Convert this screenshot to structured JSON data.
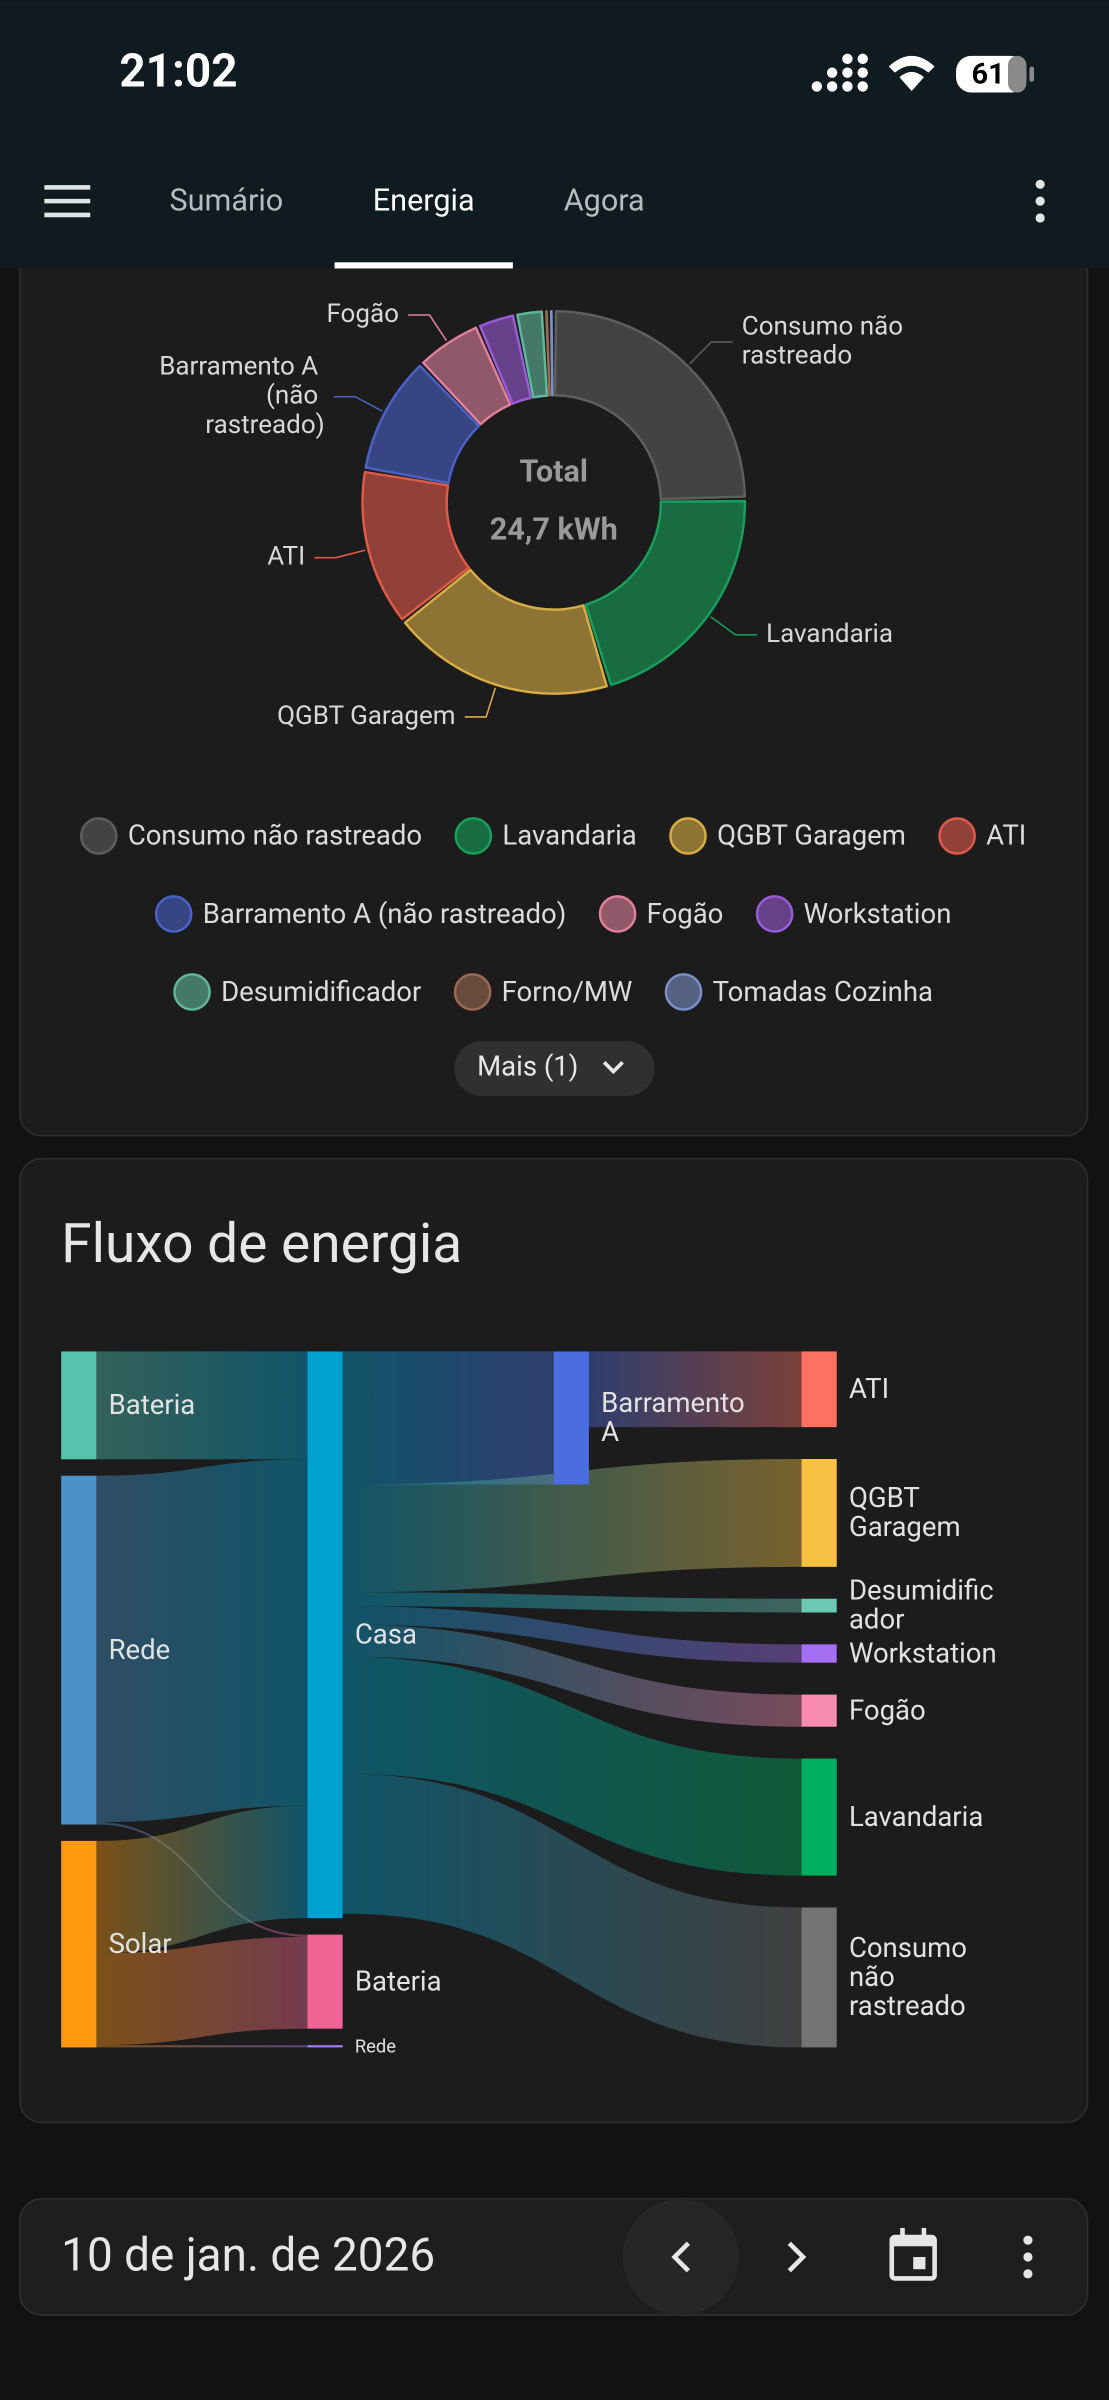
{
  "status_bar": {
    "time": "21:02",
    "battery": "61"
  },
  "tabs": [
    "Sumário",
    "Energia",
    "Agora"
  ],
  "active_tab": 1,
  "chart_data": [
    {
      "type": "donut",
      "center_title": "Total",
      "center_value": "24,7 kWh",
      "unit": "kWh",
      "categories": [
        "Consumo não rastreado",
        "Lavandaria",
        "QGBT Garagem",
        "ATI",
        "Barramento A (não rastreado)",
        "Fogão",
        "Workstation",
        "Desumidificador",
        "Forno/MW",
        "Tomadas Cozinha"
      ],
      "values": [
        6.1,
        5.1,
        4.7,
        3.3,
        2.5,
        1.4,
        0.8,
        0.6,
        0.1,
        0.1
      ],
      "colors": [
        "#5e5e5e",
        "#17a05c",
        "#d9ad45",
        "#e05a4a",
        "#4a62c8",
        "#e0809e",
        "#9a5cd6",
        "#5fb89c",
        "#9a6a50",
        "#7a90c8"
      ],
      "more_button": "Mais (1)"
    },
    {
      "type": "sankey",
      "title": "Fluxo de energia",
      "unit": "kWh",
      "nodes": [
        {
          "name": "Bateria",
          "color": "#56c2b0"
        },
        {
          "name": "Rede",
          "color": "#4a92c8"
        },
        {
          "name": "Solar",
          "color": "#ff9a10"
        },
        {
          "name": "Casa",
          "color": "#00a2d2"
        },
        {
          "name": "Bateria",
          "color": "#f06595"
        },
        {
          "name": "Rede",
          "color": "#9c7cf4"
        },
        {
          "name": "Barramento A",
          "color": "#4a6ee0"
        },
        {
          "name": "ATI",
          "color": "#ff7262"
        },
        {
          "name": "QGBT Garagem",
          "color": "#f7c244"
        },
        {
          "name": "Desumidificador",
          "color": "#6cc9b4"
        },
        {
          "name": "Workstation",
          "color": "#a66ef0"
        },
        {
          "name": "Fogão",
          "color": "#f78bb0"
        },
        {
          "name": "Lavandaria",
          "color": "#00b060"
        },
        {
          "name": "Consumo não rastreado",
          "color": "#737373"
        }
      ],
      "links": [
        {
          "source": 0,
          "target": 3,
          "value": 4.7
        },
        {
          "source": 1,
          "target": 3,
          "value": 15.1
        },
        {
          "source": 1,
          "target": 4,
          "value": 0.1
        },
        {
          "source": 2,
          "target": 3,
          "value": 4.9
        },
        {
          "source": 2,
          "target": 4,
          "value": 4.0
        },
        {
          "source": 2,
          "target": 5,
          "value": 0.1
        },
        {
          "source": 3,
          "target": 6,
          "value": 5.8
        },
        {
          "source": 6,
          "target": 7,
          "value": 3.3
        },
        {
          "source": 3,
          "target": 8,
          "value": 4.7
        },
        {
          "source": 3,
          "target": 9,
          "value": 0.6
        },
        {
          "source": 3,
          "target": 10,
          "value": 0.8
        },
        {
          "source": 3,
          "target": 11,
          "value": 1.4
        },
        {
          "source": 3,
          "target": 12,
          "value": 5.1
        },
        {
          "source": 3,
          "target": 13,
          "value": 6.1
        }
      ]
    }
  ],
  "date_bar": {
    "date": "10 de jan. de 2026"
  }
}
